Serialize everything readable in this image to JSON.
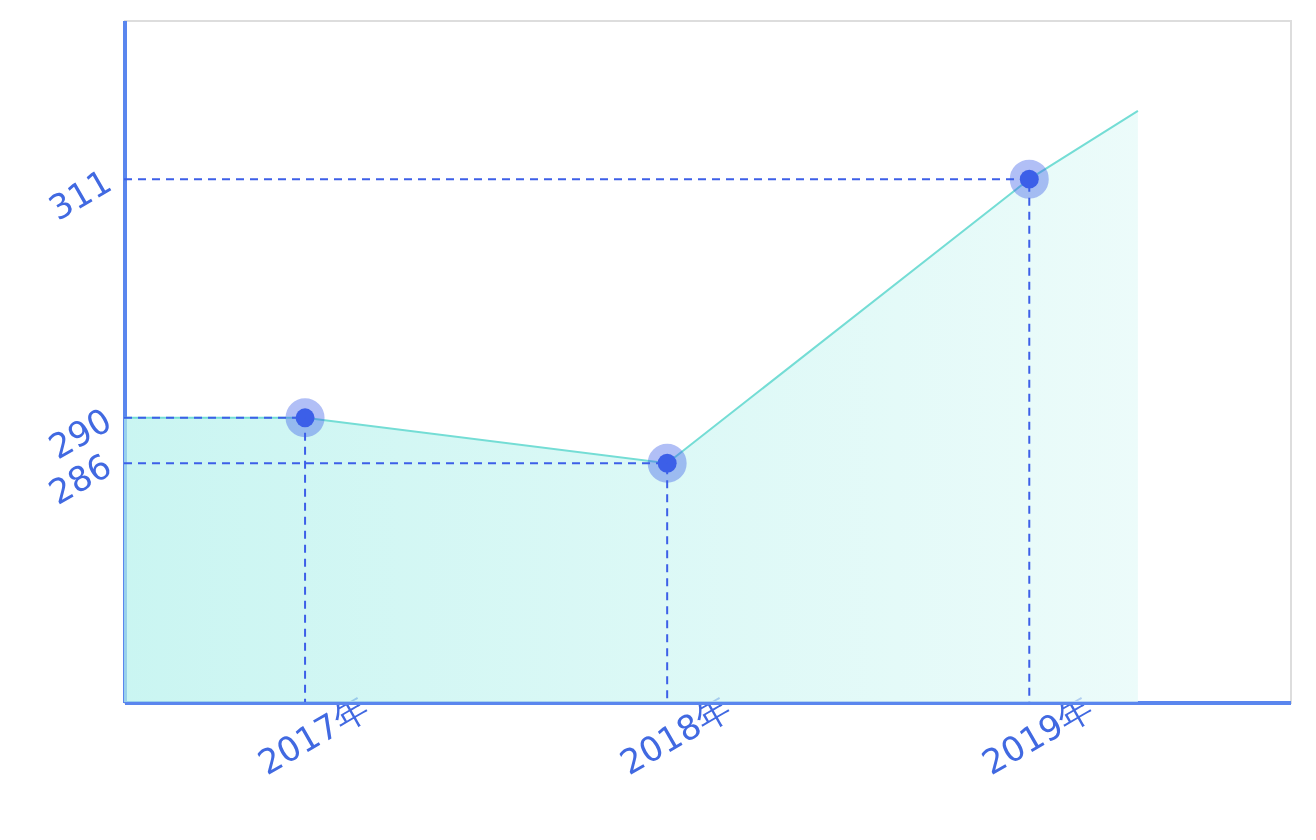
{
  "chart_data": {
    "type": "area",
    "xlim": [
      2016.5,
      2019.72
    ],
    "xticks": [
      {
        "value": 2017,
        "label": "2017年"
      },
      {
        "value": 2018,
        "label": "2018年"
      },
      {
        "value": 2019,
        "label": "2019年"
      }
    ],
    "ylim": [
      265,
      325
    ],
    "yticks": [
      286,
      290,
      311
    ],
    "series": [
      {
        "color": "#b3f1ec",
        "x": [
          2016.5,
          2017,
          2018,
          2019,
          2019.3
        ],
        "values": [
          290,
          290,
          286,
          311,
          317
        ]
      },
      {
        "type": "line",
        "line_style": "dashed",
        "color": "#3d5fe8",
        "x": [
          2016.5,
          2017,
          2017
        ],
        "values": [
          290,
          290,
          265
        ]
      },
      {
        "type": "line",
        "line_style": "dashed",
        "color": "#3d5fe8",
        "x": [
          2016.5,
          2018,
          2018
        ],
        "values": [
          286,
          286,
          265
        ]
      },
      {
        "type": "line",
        "line_style": "dashed",
        "color": "#3d5fe8",
        "x": [
          2016.5,
          2019,
          2019
        ],
        "values": [
          311,
          311,
          265
        ]
      },
      {
        "type": "scatter",
        "marker": "circle",
        "color": "#3d5fe8",
        "x": [
          2017,
          2018,
          2019
        ],
        "values": [
          290,
          286,
          311
        ]
      }
    ]
  }
}
